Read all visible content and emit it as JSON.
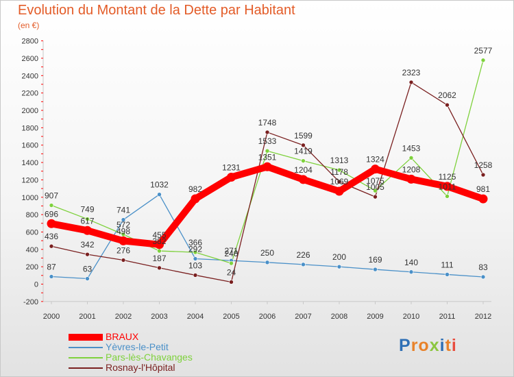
{
  "header": {
    "title": "Evolution du Montant de la Dette par Habitant",
    "unit": "(en €)"
  },
  "logo": {
    "letters": [
      "P",
      "r",
      "o",
      "x",
      "i",
      "t",
      "i"
    ],
    "colors": [
      "#2e6fb5",
      "#e8822a",
      "#e8822a",
      "#8cc63f",
      "#2e6fb5",
      "#e8822a",
      "#e84c3d"
    ]
  },
  "chart_data": {
    "type": "line",
    "categories": [
      "2000",
      "2001",
      "2002",
      "2003",
      "2004",
      "2005",
      "2006",
      "2007",
      "2008",
      "2009",
      "2010",
      "2011",
      "2012"
    ],
    "ylim": [
      -200,
      2800
    ],
    "yticks": [
      -200,
      0,
      200,
      400,
      600,
      800,
      1000,
      1200,
      1400,
      1600,
      1800,
      2000,
      2200,
      2400,
      2600,
      2800
    ],
    "grid": false,
    "legend_position": "bottom-left",
    "series": [
      {
        "name": "BRAUX",
        "color": "#ff0000",
        "emphasis": true,
        "values": [
          696,
          617,
          498,
          455,
          982,
          1231,
          1351,
          1204,
          1069,
          1324,
          1208,
          1125,
          981
        ]
      },
      {
        "name": "Yèvres-le-Petit",
        "color": "#4a90c8",
        "values": [
          87,
          63,
          741,
          1032,
          292,
          271,
          250,
          226,
          200,
          169,
          140,
          111,
          83
        ]
      },
      {
        "name": "Pars-lès-Chavanges",
        "color": "#7ed13c",
        "values": [
          907,
          749,
          572,
          382,
          366,
          240,
          1533,
          1419,
          1313,
          1075,
          1453,
          1011,
          2577
        ]
      },
      {
        "name": "Rosnay-l'Hôpital",
        "color": "#7a2020",
        "values": [
          436,
          342,
          276,
          187,
          103,
          24,
          1748,
          1599,
          1178,
          1005,
          2323,
          2062,
          1258
        ]
      }
    ]
  }
}
